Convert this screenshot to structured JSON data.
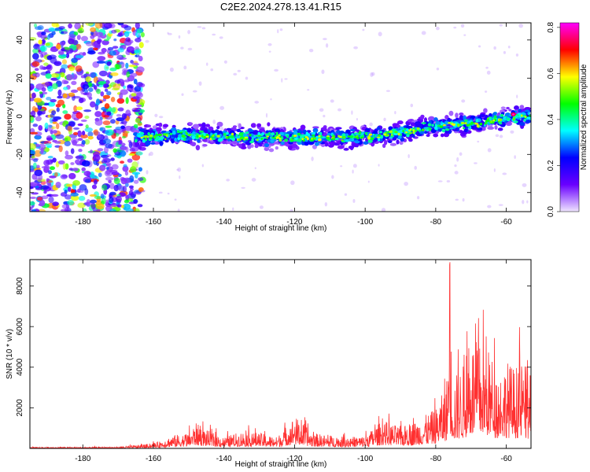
{
  "title": "C2E2.2024.278.13.41.R15",
  "chart_data": [
    {
      "type": "heatmap",
      "xlabel": "Height of straight line (km)",
      "ylabel": "Frequency (Hz)",
      "xlim": [
        -195,
        -53
      ],
      "ylim": [
        -50,
        49
      ],
      "x_ticks": [
        "-180",
        "-160",
        "-140",
        "-120",
        "-100",
        "-80",
        "-60"
      ],
      "x_tick_values": [
        -180,
        -160,
        -140,
        -120,
        -100,
        -80,
        -60
      ],
      "y_ticks": [
        "-40",
        "-20",
        "0",
        "20",
        "40"
      ],
      "y_tick_values": [
        -40,
        -20,
        0,
        20,
        40
      ],
      "colorbar": {
        "label": "Normalized spectral amplitude",
        "range": [
          0,
          0.82
        ],
        "ticks": [
          "0.0",
          "0.2",
          "0.4",
          "0.6",
          "0.8"
        ],
        "tick_values": [
          0,
          0.2,
          0.4,
          0.6,
          0.8
        ],
        "colors": [
          "#f0e6ff",
          "#6a00ff",
          "#0000ff",
          "#00ffff",
          "#00ff00",
          "#ffff00",
          "#ff0000",
          "#ff00ff"
        ]
      },
      "signal_track": {
        "x": [
          -165,
          -150,
          -135,
          -120,
          -105,
          -95,
          -80,
          -70,
          -60,
          -55
        ],
        "center_hz": [
          -11,
          -10,
          -11,
          -11,
          -11,
          -10,
          -5,
          -4,
          -1,
          0
        ]
      },
      "noise_region_x": [
        -195,
        -165
      ],
      "peak": {
        "x": -58,
        "y": 1,
        "value": 0.82
      },
      "grid": false
    },
    {
      "type": "line",
      "xlabel": "Height of straight line (km)",
      "ylabel": "SNR (10 * v/v)",
      "xlim": [
        -195,
        -53
      ],
      "ylim": [
        0,
        9300
      ],
      "x_ticks": [
        "-180",
        "-160",
        "-140",
        "-120",
        "-100",
        "-80",
        "-60"
      ],
      "x_tick_values": [
        -180,
        -160,
        -140,
        -120,
        -100,
        -80,
        -60
      ],
      "y_ticks": [
        "2000",
        "4000",
        "6000",
        "8000"
      ],
      "y_tick_values": [
        2000,
        4000,
        6000,
        8000
      ],
      "color": "#ff3030",
      "envelope": {
        "x": [
          -195,
          -170,
          -162,
          -158,
          -155,
          -150,
          -148,
          -145,
          -140,
          -135,
          -130,
          -125,
          -120,
          -115,
          -110,
          -105,
          -100,
          -95,
          -90,
          -85,
          -80,
          -77,
          -76,
          -75,
          -72,
          -70,
          -65,
          -62,
          -60,
          -58,
          -55,
          -53
        ],
        "y": [
          80,
          100,
          300,
          500,
          900,
          1100,
          1800,
          1300,
          800,
          1200,
          1100,
          800,
          2300,
          1100,
          900,
          800,
          900,
          2000,
          1500,
          2000,
          2800,
          4500,
          9300,
          5000,
          6000,
          7800,
          7000,
          5500,
          6300,
          5800,
          6200,
          5000
        ]
      },
      "grid": false
    }
  ]
}
